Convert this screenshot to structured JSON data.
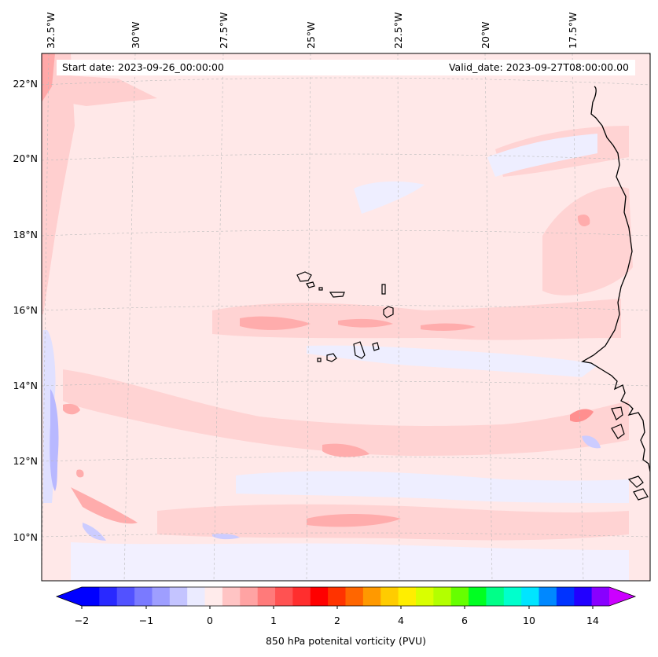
{
  "map": {
    "lon_labels": [
      "32.5°W",
      "30°W",
      "27.5°W",
      "25°W",
      "22.5°W",
      "20°W",
      "17.5°W"
    ],
    "lat_labels": [
      "22°N",
      "20°N",
      "18°N",
      "16°N",
      "14°N",
      "12°N",
      "10°N"
    ],
    "start_date": "Start date: 2023-09-26_00:00:00",
    "valid_date": "Valid_date: 2023-09-27T08:00:00.00"
  },
  "colorbar": {
    "title": "850 hPa potenital vorticity (PVU)",
    "tick_labels": [
      "−2",
      "−1",
      "0",
      "1",
      "2",
      "4",
      "6",
      "10",
      "14"
    ],
    "colors": [
      "#0000ff",
      "#2929ff",
      "#5252ff",
      "#7a7aff",
      "#9e9eff",
      "#c4c4ff",
      "#ebebff",
      "#ffebeb",
      "#ffc4c4",
      "#ffa3a3",
      "#ff7a7a",
      "#ff5252",
      "#ff2e2e",
      "#ff0000",
      "#ff3300",
      "#ff6600",
      "#ff9900",
      "#ffcc00",
      "#ffee00",
      "#d9ff00",
      "#b3ff00",
      "#66ff00",
      "#00ff22",
      "#00ff88",
      "#00ffcc",
      "#00e5ff",
      "#0088ff",
      "#0033ff",
      "#2200ff",
      "#8800ff"
    ],
    "under_color": "#0000ff",
    "over_color": "#cc00ff"
  }
}
